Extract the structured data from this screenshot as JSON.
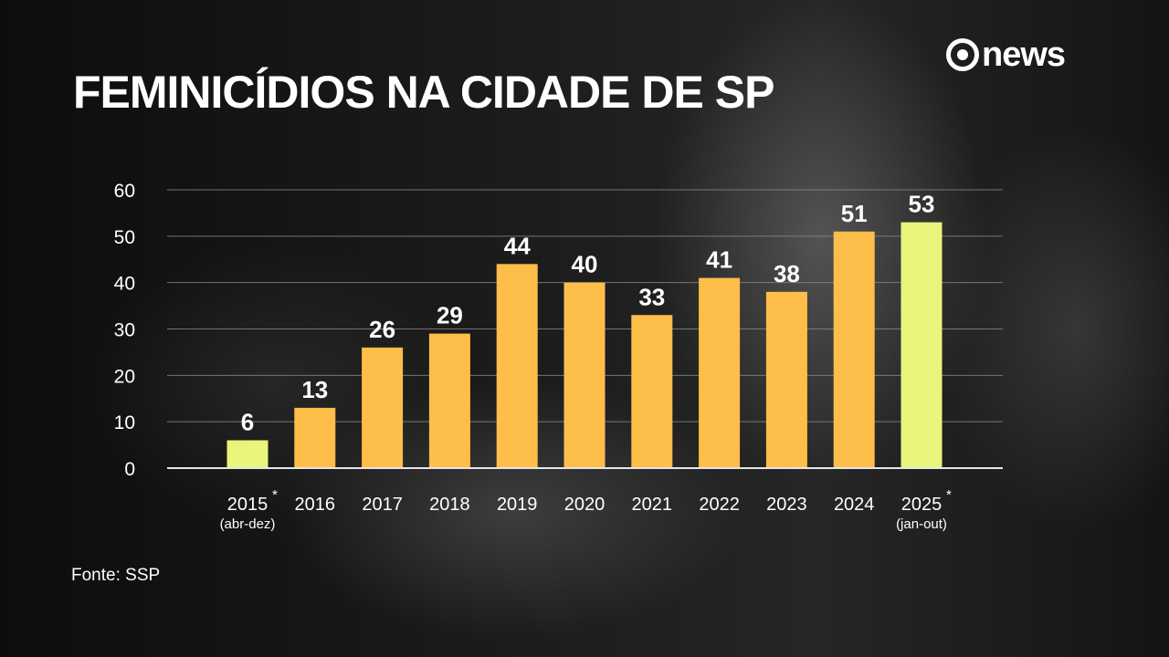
{
  "header": {
    "title": "FEMINICÍDIOS NA CIDADE DE SP",
    "logo_text": "news",
    "logo_icon": "globo-circle-icon"
  },
  "footer": {
    "source": "Fonte: SSP"
  },
  "colors": {
    "bar": "#FDBE4A",
    "highlight": "#E9F57A",
    "grid": "#8a8a8a",
    "text": "#ffffff"
  },
  "chart_data": {
    "type": "bar",
    "categories": [
      "2015",
      "2016",
      "2017",
      "2018",
      "2019",
      "2020",
      "2021",
      "2022",
      "2023",
      "2024",
      "2025"
    ],
    "category_notes": [
      "(abr-dez)",
      "",
      "",
      "",
      "",
      "",
      "",
      "",
      "",
      "",
      "(jan-out)"
    ],
    "category_marks": [
      "*",
      "",
      "",
      "",
      "",
      "",
      "",
      "",
      "",
      "",
      "*"
    ],
    "values": [
      6,
      13,
      26,
      29,
      44,
      40,
      33,
      41,
      38,
      51,
      53
    ],
    "highlighted": [
      true,
      false,
      false,
      false,
      false,
      false,
      false,
      false,
      false,
      false,
      true
    ],
    "title": "FEMINICÍDIOS NA CIDADE DE SP",
    "xlabel": "",
    "ylabel": "",
    "ylim": [
      0,
      60
    ],
    "yticks": [
      0,
      10,
      20,
      30,
      40,
      50,
      60
    ],
    "grid": true,
    "legend": "none",
    "data_labels": true
  }
}
